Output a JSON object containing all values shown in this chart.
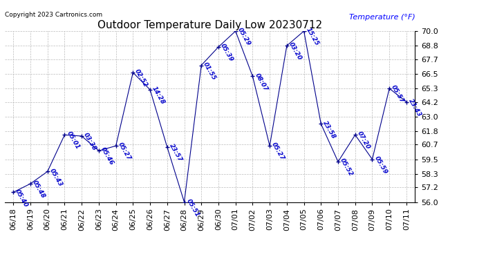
{
  "title": "Outdoor Temperature Daily Low 20230712",
  "ylabel": "Temperature (°F)",
  "copyright": "Copyright 2023 Cartronics.com",
  "background_color": "#ffffff",
  "line_color": "#00008b",
  "text_color": "#0000cc",
  "ylim": [
    56.0,
    70.0
  ],
  "yticks": [
    56.0,
    57.2,
    58.3,
    59.5,
    60.7,
    61.8,
    63.0,
    64.2,
    65.3,
    66.5,
    67.7,
    68.8,
    70.0
  ],
  "dates": [
    "06/18",
    "06/19",
    "06/20",
    "06/21",
    "06/22",
    "06/23",
    "06/24",
    "06/25",
    "06/26",
    "06/27",
    "06/28",
    "06/29",
    "06/30",
    "07/01",
    "07/02",
    "07/03",
    "07/04",
    "07/05",
    "07/06",
    "07/07",
    "07/08",
    "07/09",
    "07/10",
    "07/11"
  ],
  "values": [
    56.8,
    57.5,
    58.5,
    61.5,
    61.4,
    60.2,
    60.6,
    66.6,
    65.2,
    60.5,
    56.0,
    67.2,
    68.7,
    70.0,
    66.3,
    60.6,
    68.8,
    70.0,
    62.4,
    59.3,
    61.5,
    59.5,
    65.3,
    64.2
  ],
  "time_labels": [
    "05:40",
    "05:48",
    "05:43",
    "05:01",
    "03:38",
    "05:46",
    "05:27",
    "02:52",
    "14:28",
    "23:57",
    "05:51",
    "01:55",
    "05:39",
    "05:29",
    "08:07",
    "05:27",
    "03:20",
    "15:25",
    "23:58",
    "05:52",
    "07:20",
    "05:59",
    "05:57",
    "23:43"
  ],
  "title_fontsize": 11,
  "tick_fontsize": 8,
  "label_fontsize": 6.5
}
